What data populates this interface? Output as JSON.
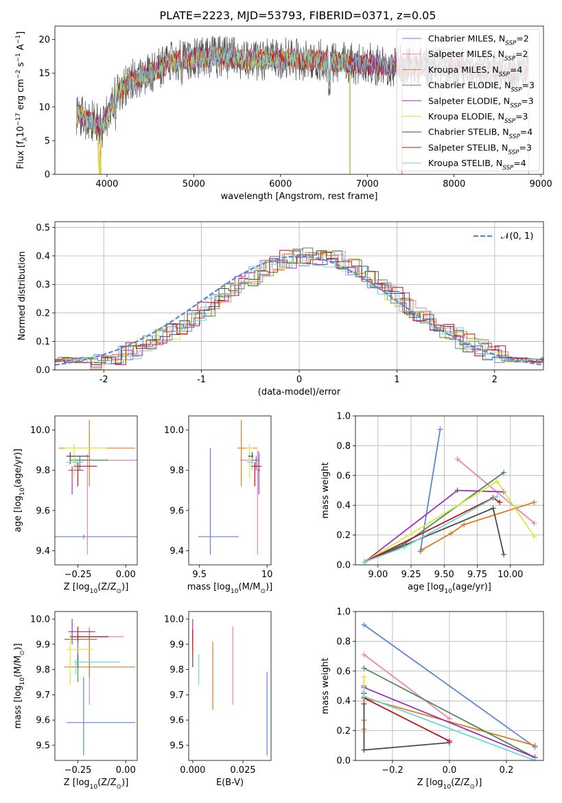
{
  "title": "PLATE=2223, MJD=53793, FIBERID=0371, z=0.05",
  "colors": [
    "#5b86d6",
    "#ee82b4",
    "#e07b1c",
    "#52875a",
    "#9b31b5",
    "#d7ea3a",
    "#4a4a4a",
    "#c0101a",
    "#6fd6d6"
  ],
  "legend_labels": {
    "spectrum": [
      {
        "pre": "Chabrier MILES, N",
        "sub": "SSP",
        "post": "=2"
      },
      {
        "pre": "Salpeter MILES, N",
        "sub": "SSP",
        "post": "=2"
      },
      {
        "pre": "Kroupa MILES, N",
        "sub": "SSP",
        "post": "=4"
      },
      {
        "pre": "Chabrier ELODIE, N",
        "sub": "SSP",
        "post": "=3"
      },
      {
        "pre": "Salpeter ELODIE, N",
        "sub": "SSP",
        "post": "=3"
      },
      {
        "pre": "Kroupa ELODIE, N",
        "sub": "SSP",
        "post": "=3"
      },
      {
        "pre": "Chabrier STELIB, N",
        "sub": "SSP",
        "post": "=4"
      },
      {
        "pre": "Salpeter STELIB, N",
        "sub": "SSP",
        "post": "=3"
      },
      {
        "pre": "Kroupa STELIB, N",
        "sub": "SSP",
        "post": "=4"
      }
    ],
    "residual": "𝒩(0, 1)"
  },
  "chart_data": [
    {
      "id": "spectrum",
      "type": "line",
      "xlabel": "wavelength [Angstrom, rest frame]",
      "ylabel": {
        "pre": "Flux [f",
        "sub": "λ",
        "mid": "10",
        "sup": "−17",
        "post": " erg cm",
        "sup2": "−2",
        "post2": " s",
        "sup3": "−1",
        "post3": " A",
        "sup4": "−1",
        "end": "]"
      },
      "xlim": [
        3400,
        9030
      ],
      "ylim": [
        0,
        22
      ],
      "xticks": [
        4000,
        5000,
        6000,
        7000,
        8000,
        9000
      ],
      "yticks": [
        0,
        5,
        10,
        15,
        20
      ],
      "grid": false,
      "legend_position": "right",
      "continuum": {
        "x": [
          3650,
          3800,
          3950,
          4100,
          4300,
          4500,
          4800,
          5200,
          5600,
          6000,
          6400,
          6800,
          7200,
          7600,
          8000,
          8400,
          8800
        ],
        "y": [
          9,
          8,
          7,
          12,
          14,
          15,
          17,
          17.5,
          17,
          17.2,
          17,
          16.5,
          16.2,
          16,
          15.8,
          15.5,
          15.5
        ]
      },
      "series_ranges": [
        [
          3650,
          7400
        ],
        [
          3650,
          8860
        ],
        [
          3650,
          8860
        ],
        [
          3650,
          8860
        ],
        [
          3650,
          8860
        ],
        [
          3650,
          6800
        ],
        [
          3650,
          8860
        ],
        [
          3650,
          8860
        ],
        [
          3650,
          8860
        ]
      ]
    },
    {
      "id": "residuals",
      "type": "step",
      "xlabel": "(data-model)/error",
      "ylabel": "Normed distribution",
      "xlim": [
        -2.5,
        2.5
      ],
      "ylim": [
        0,
        0.52
      ],
      "xticks": [
        -2,
        -1,
        0,
        1,
        2
      ],
      "yticks": [
        0.0,
        0.1,
        0.2,
        0.3,
        0.4,
        0.5
      ],
      "grid": true,
      "legend_position": "top-right",
      "gaussian": {
        "mu": 0,
        "sigma": 1
      }
    },
    {
      "id": "age-vs-Z",
      "type": "errorbar",
      "xlabel": {
        "pre": "Z [log",
        "sub": "10",
        "post": "(Z/Z",
        "sub2": "⊙",
        "end": ")]"
      },
      "ylabel": {
        "pre": "age  [log",
        "sub": "10",
        "post": "(age/yr)]"
      },
      "xlim": [
        -0.37,
        0.06
      ],
      "ylim": [
        9.33,
        10.07
      ],
      "xticks": [
        -0.25,
        0.0
      ],
      "xtick_labels": [
        "−0.25",
        "0.00"
      ],
      "yticks": [
        9.4,
        9.6,
        9.8,
        10.0
      ],
      "points": [
        {
          "x": -0.22,
          "y": 9.47,
          "xerr": [
            0.3,
            0.3
          ],
          "yerr": [
            0.01,
            0.01
          ],
          "c": 0
        },
        {
          "x": -0.2,
          "y": 9.85,
          "xerr": [
            0.07,
            0.26
          ],
          "yerr": [
            0.47,
            0.03
          ],
          "c": 1
        },
        {
          "x": -0.19,
          "y": 9.91,
          "xerr": [
            0.16,
            0.24
          ],
          "yerr": [
            0.19,
            0.14
          ],
          "c": 2
        },
        {
          "x": -0.24,
          "y": 9.85,
          "xerr": [
            0.05,
            0.15
          ],
          "yerr": [
            0.05,
            0.02
          ],
          "c": 3
        },
        {
          "x": -0.28,
          "y": 9.8,
          "xerr": [
            0.02,
            0.06
          ],
          "yerr": [
            0.12,
            0.02
          ],
          "c": 4
        },
        {
          "x": -0.27,
          "y": 9.91,
          "xerr": [
            0.05,
            0.17
          ],
          "yerr": [
            0.15,
            0.02
          ],
          "c": 5
        },
        {
          "x": -0.29,
          "y": 9.87,
          "xerr": [
            0.02,
            0.1
          ],
          "yerr": [
            0.04,
            0.02
          ],
          "c": 6
        },
        {
          "x": -0.25,
          "y": 9.82,
          "xerr": [
            0.02,
            0.1
          ],
          "yerr": [
            0.1,
            0.02
          ],
          "c": 7
        },
        {
          "x": -0.26,
          "y": 9.84,
          "xerr": [
            0.05,
            0.04
          ],
          "yerr": [
            0.04,
            0.02
          ],
          "c": 8
        }
      ]
    },
    {
      "id": "age-vs-mass",
      "type": "errorbar",
      "xlabel": {
        "pre": "mass [log",
        "sub": "10",
        "post": "(M/M",
        "sub2": "⊙",
        "end": ")]"
      },
      "ylabel": "",
      "xlim": [
        9.42,
        10.03
      ],
      "ylim": [
        9.33,
        10.07
      ],
      "xticks": [
        9.5,
        10.0
      ],
      "yticks": [
        9.4,
        9.6,
        9.8,
        10.0
      ],
      "points": [
        {
          "x": 9.58,
          "y": 9.47,
          "xerr": [
            0.09,
            0.21
          ],
          "yerr": [
            0.09,
            0.44
          ],
          "c": 0
        },
        {
          "x": 9.93,
          "y": 9.85,
          "xerr": [
            0.13,
            0.02
          ],
          "yerr": [
            0.47,
            0.05
          ],
          "c": 1
        },
        {
          "x": 9.81,
          "y": 9.91,
          "xerr": [
            0.03,
            0.12
          ],
          "yerr": [
            0.19,
            0.14
          ],
          "c": 2
        },
        {
          "x": 9.92,
          "y": 9.85,
          "xerr": [
            0.03,
            0.01
          ],
          "yerr": [
            0.05,
            0.02
          ],
          "c": 3
        },
        {
          "x": 9.94,
          "y": 9.8,
          "xerr": [
            0.01,
            0.01
          ],
          "yerr": [
            0.12,
            0.09
          ],
          "c": 4
        },
        {
          "x": 9.87,
          "y": 9.91,
          "xerr": [
            0.02,
            0.03
          ],
          "yerr": [
            0.15,
            0.02
          ],
          "c": 5
        },
        {
          "x": 9.89,
          "y": 9.87,
          "xerr": [
            0.03,
            0.01
          ],
          "yerr": [
            0.04,
            0.02
          ],
          "c": 6
        },
        {
          "x": 9.91,
          "y": 9.82,
          "xerr": [
            0.03,
            0.05
          ],
          "yerr": [
            0.1,
            0.02
          ],
          "c": 7
        },
        {
          "x": 9.89,
          "y": 9.84,
          "xerr": [
            0.04,
            0.01
          ],
          "yerr": [
            0.04,
            0.02
          ],
          "c": 8
        }
      ]
    },
    {
      "id": "weight-vs-age",
      "type": "line",
      "xlabel": {
        "pre": "age  [log",
        "sub": "10",
        "post": "(age/yr)]"
      },
      "ylabel": "mass weight",
      "xlim": [
        8.83,
        10.25
      ],
      "ylim": [
        0,
        1
      ],
      "xticks": [
        9.0,
        9.25,
        9.5,
        9.75,
        10.0
      ],
      "xtick_labels": [
        "9.00",
        "9.25",
        "9.50",
        "9.75",
        "10.00"
      ],
      "yticks": [
        0.0,
        0.2,
        0.4,
        0.6,
        0.8,
        1.0
      ],
      "grid": true,
      "series": [
        {
          "c": 0,
          "x": [
            9.32,
            9.47
          ],
          "y": [
            0.09,
            0.91
          ]
        },
        {
          "c": 1,
          "x": [
            9.6,
            10.18
          ],
          "y": [
            0.71,
            0.28
          ]
        },
        {
          "c": 2,
          "x": [
            9.33,
            9.55,
            9.65,
            10.18
          ],
          "y": [
            0.1,
            0.21,
            0.27,
            0.42
          ]
        },
        {
          "c": 3,
          "x": [
            8.9,
            9.2,
            9.95
          ],
          "y": [
            0.02,
            0.14,
            0.62
          ]
        },
        {
          "c": 4,
          "x": [
            8.9,
            9.6,
            9.95
          ],
          "y": [
            0.02,
            0.5,
            0.49
          ]
        },
        {
          "c": 5,
          "x": [
            8.9,
            9.9,
            10.18
          ],
          "y": [
            0.02,
            0.56,
            0.19
          ]
        },
        {
          "c": 6,
          "x": [
            8.9,
            9.87,
            9.95
          ],
          "y": [
            0.02,
            0.38,
            0.07
          ]
        },
        {
          "c": 7,
          "x": [
            8.9,
            9.87,
            9.92
          ],
          "y": [
            0.02,
            0.45,
            0.42
          ]
        },
        {
          "c": 8,
          "x": [
            8.9,
            9.2,
            9.9
          ],
          "y": [
            0.02,
            0.12,
            0.46
          ]
        }
      ]
    },
    {
      "id": "mass-vs-Z",
      "type": "errorbar",
      "xlabel": {
        "pre": "Z [log",
        "sub": "10",
        "post": "(Z/Z",
        "sub2": "⊙",
        "end": ")]"
      },
      "ylabel": {
        "pre": "mass [log",
        "sub": "10",
        "post": "(M/M",
        "sub2": "⊙",
        "end": ")]"
      },
      "xlim": [
        -0.37,
        0.06
      ],
      "ylim": [
        9.44,
        10.03
      ],
      "xticks": [
        -0.25,
        0.0
      ],
      "xtick_labels": [
        "−0.25",
        "0.00"
      ],
      "yticks": [
        9.5,
        9.6,
        9.7,
        9.8,
        9.9,
        10.0
      ],
      "points": [
        {
          "x": -0.22,
          "y": 9.59,
          "xerr": [
            0.09,
            0.27
          ],
          "yerr": [
            0.13,
            0.18
          ],
          "c": 0
        },
        {
          "x": -0.19,
          "y": 9.93,
          "xerr": [
            0.07,
            0.18
          ],
          "yerr": [
            0.27,
            0.04
          ],
          "c": 1
        },
        {
          "x": -0.19,
          "y": 9.81,
          "xerr": [
            0.13,
            0.24
          ],
          "yerr": [
            0.04,
            0.15
          ],
          "c": 2
        },
        {
          "x": -0.25,
          "y": 9.92,
          "xerr": [
            0.07,
            0.1
          ],
          "yerr": [
            0.17,
            0.02
          ],
          "c": 3
        },
        {
          "x": -0.28,
          "y": 9.95,
          "xerr": [
            0.02,
            0.12
          ],
          "yerr": [
            0.05,
            0.05
          ],
          "c": 4
        },
        {
          "x": -0.29,
          "y": 9.88,
          "xerr": [
            0.02,
            0.12
          ],
          "yerr": [
            0.14,
            0.06
          ],
          "c": 5
        },
        {
          "x": -0.25,
          "y": 9.83,
          "xerr": [
            0.02,
            0.08
          ],
          "yerr": [
            0.02,
            0.03
          ],
          "c": 6
        },
        {
          "x": -0.25,
          "y": 9.93,
          "xerr": [
            0.04,
            0.16
          ],
          "yerr": [
            0.02,
            0.04
          ],
          "c": 7
        },
        {
          "x": -0.26,
          "y": 9.83,
          "xerr": [
            0.01,
            0.23
          ],
          "yerr": [
            0.05,
            0.01
          ],
          "c": 8
        }
      ]
    },
    {
      "id": "mass-vs-ebv",
      "type": "errorbar",
      "xlabel": "E(B-V)",
      "ylabel": "",
      "xlim": [
        -0.002,
        0.039
      ],
      "ylim": [
        9.44,
        10.03
      ],
      "xticks": [
        0.0,
        0.025
      ],
      "xtick_labels": [
        "0.000",
        "0.025"
      ],
      "yticks": [
        9.5,
        9.6,
        9.7,
        9.8,
        9.9,
        10.0
      ],
      "points": [
        {
          "x": 0.037,
          "y": 9.59,
          "xerr": [
            0,
            0
          ],
          "yerr": [
            0.13,
            0.2
          ],
          "c": 0
        },
        {
          "x": 0.02,
          "y": 9.93,
          "xerr": [
            0,
            0
          ],
          "yerr": [
            0.27,
            0.04
          ],
          "c": 1
        },
        {
          "x": 0.01,
          "y": 9.81,
          "xerr": [
            0,
            0
          ],
          "yerr": [
            0.17,
            0.1
          ],
          "c": 2
        },
        {
          "x": 0.0,
          "y": 9.92,
          "xerr": [
            0,
            0
          ],
          "yerr": [
            0.05,
            0.03
          ],
          "c": 3
        },
        {
          "x": 0.0,
          "y": 9.95,
          "xerr": [
            0,
            0
          ],
          "yerr": [
            0.05,
            0.05
          ],
          "c": 4
        },
        {
          "x": 0.0,
          "y": 9.88,
          "xerr": [
            0,
            0
          ],
          "yerr": [
            0.03,
            0.03
          ],
          "c": 5
        },
        {
          "x": 0.0,
          "y": 9.83,
          "xerr": [
            0,
            0
          ],
          "yerr": [
            0.02,
            0.03
          ],
          "c": 6
        },
        {
          "x": 0.0,
          "y": 9.93,
          "xerr": [
            0,
            0
          ],
          "yerr": [
            0.07,
            0.03
          ],
          "c": 7
        },
        {
          "x": 0.003,
          "y": 9.8,
          "xerr": [
            0,
            0
          ],
          "yerr": [
            0.06,
            0.06
          ],
          "c": 8
        }
      ]
    },
    {
      "id": "weight-vs-Z",
      "type": "line",
      "xlabel": {
        "pre": "Z [log",
        "sub": "10",
        "post": "(Z/Z",
        "sub2": "⊙",
        "end": ")]"
      },
      "ylabel": "mass weight",
      "xlim": [
        -0.33,
        0.33
      ],
      "ylim": [
        0,
        1
      ],
      "xticks": [
        -0.2,
        0.0,
        0.2
      ],
      "xtick_labels": [
        "−0.2",
        "0.0",
        "0.2"
      ],
      "yticks": [
        0.0,
        0.2,
        0.4,
        0.6,
        0.8,
        1.0
      ],
      "grid": true,
      "series": [
        {
          "c": 0,
          "x": [
            -0.3,
            0.3
          ],
          "y": [
            0.91,
            0.09
          ]
        },
        {
          "c": 1,
          "x": [
            -0.3,
            0.0
          ],
          "y": [
            0.71,
            0.28
          ]
        },
        {
          "c": 2,
          "x": [
            -0.3,
            -0.3,
            -0.3,
            0.3
          ],
          "y": [
            0.21,
            0.27,
            0.42,
            0.1
          ]
        },
        {
          "c": 3,
          "x": [
            -0.3,
            0.3
          ],
          "y": [
            0.62,
            0.02
          ]
        },
        {
          "c": 4,
          "x": [
            -0.3,
            -0.3,
            0.3
          ],
          "y": [
            0.5,
            0.49,
            0.02
          ]
        },
        {
          "c": 5,
          "x": [
            -0.3,
            -0.3
          ],
          "y": [
            0.56,
            0.19
          ]
        },
        {
          "c": 6,
          "x": [
            -0.3,
            -0.3,
            0.0
          ],
          "y": [
            0.38,
            0.07,
            0.12
          ]
        },
        {
          "c": 7,
          "x": [
            -0.3,
            -0.3,
            0.0
          ],
          "y": [
            0.45,
            0.42,
            0.13
          ]
        },
        {
          "c": 8,
          "x": [
            -0.3,
            -0.3,
            0.3
          ],
          "y": [
            0.46,
            0.43,
            0.0
          ]
        }
      ]
    }
  ]
}
